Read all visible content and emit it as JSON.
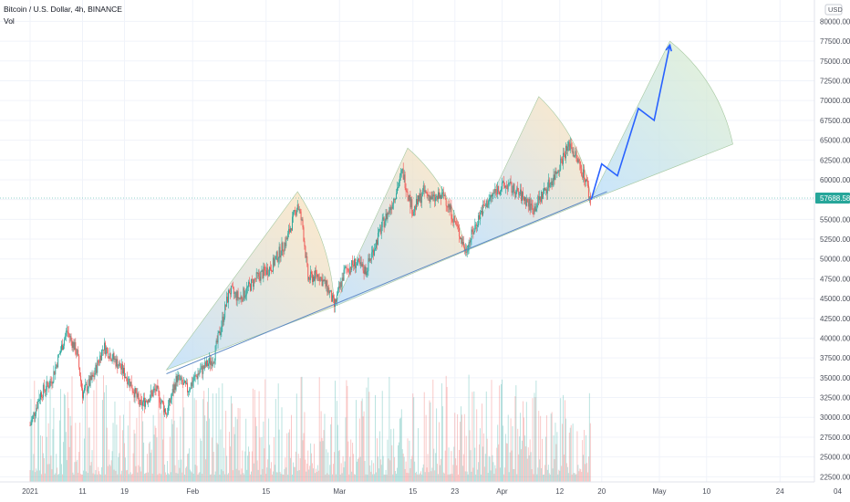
{
  "header": {
    "symbol_line": "Bitcoin / U.S. Dollar, 4h, BINANCE",
    "indicator": "Vol"
  },
  "chart_data": {
    "type": "candlestick",
    "y_axis": {
      "unit": "USD",
      "ticks": [
        "80000.00",
        "77500.00",
        "75000.00",
        "72500.00",
        "70000.00",
        "67500.00",
        "65000.00",
        "62500.00",
        "60000.00",
        "57500.00",
        "55000.00",
        "52500.00",
        "50000.00",
        "47500.00",
        "45000.00",
        "42500.00",
        "40000.00",
        "37500.00",
        "35000.00",
        "32500.00",
        "30000.00",
        "27500.00",
        "25000.00",
        "22500.00"
      ],
      "ylim": [
        21500,
        81500
      ],
      "grid": true
    },
    "x_axis": {
      "ticks": [
        "2021",
        "11",
        "19",
        "Feb",
        "15",
        "Mar",
        "15",
        "23",
        "Apr",
        "12",
        "20",
        "May",
        "10",
        "24",
        "04"
      ],
      "tick_dates": [
        "2021-01-01",
        "2021-01-11",
        "2021-01-19",
        "2021-02-01",
        "2021-02-15",
        "2021-03-01",
        "2021-03-15",
        "2021-03-23",
        "2021-04-01",
        "2021-04-12",
        "2021-04-20",
        "2021-05-01",
        "2021-05-10",
        "2021-05-24",
        "2021-06-04"
      ]
    },
    "last_price": "57688.58",
    "price_path": [
      [
        "2021-01-01",
        29000
      ],
      [
        "2021-01-03",
        33000
      ],
      [
        "2021-01-05",
        34500
      ],
      [
        "2021-01-08",
        41000
      ],
      [
        "2021-01-10",
        38000
      ],
      [
        "2021-01-11",
        33000
      ],
      [
        "2021-01-13",
        35000
      ],
      [
        "2021-01-15",
        39000
      ],
      [
        "2021-01-18",
        36500
      ],
      [
        "2021-01-20",
        34500
      ],
      [
        "2021-01-22",
        31500
      ],
      [
        "2021-01-25",
        33500
      ],
      [
        "2021-01-27",
        30500
      ],
      [
        "2021-01-29",
        35000
      ],
      [
        "2021-01-31",
        33500
      ],
      [
        "2021-02-02",
        35500
      ],
      [
        "2021-02-05",
        37500
      ],
      [
        "2021-02-08",
        46000
      ],
      [
        "2021-02-10",
        45000
      ],
      [
        "2021-02-13",
        47500
      ],
      [
        "2021-02-16",
        49000
      ],
      [
        "2021-02-19",
        52500
      ],
      [
        "2021-02-21",
        57000
      ],
      [
        "2021-02-22",
        54000
      ],
      [
        "2021-02-23",
        47500
      ],
      [
        "2021-02-25",
        48000
      ],
      [
        "2021-02-27",
        46000
      ],
      [
        "2021-02-28",
        44000
      ],
      [
        "2021-03-02",
        48500
      ],
      [
        "2021-03-04",
        49500
      ],
      [
        "2021-03-06",
        48500
      ],
      [
        "2021-03-09",
        54000
      ],
      [
        "2021-03-11",
        57000
      ],
      [
        "2021-03-13",
        61000
      ],
      [
        "2021-03-15",
        56000
      ],
      [
        "2021-03-17",
        58500
      ],
      [
        "2021-03-19",
        57500
      ],
      [
        "2021-03-21",
        58000
      ],
      [
        "2021-03-24",
        53000
      ],
      [
        "2021-03-25",
        51000
      ],
      [
        "2021-03-28",
        56000
      ],
      [
        "2021-03-31",
        58800
      ],
      [
        "2021-04-02",
        59300
      ],
      [
        "2021-04-05",
        57800
      ],
      [
        "2021-04-07",
        56300
      ],
      [
        "2021-04-09",
        58500
      ],
      [
        "2021-04-11",
        60500
      ],
      [
        "2021-04-13",
        63500
      ],
      [
        "2021-04-14",
        64500
      ],
      [
        "2021-04-16",
        61500
      ],
      [
        "2021-04-17",
        60000
      ],
      [
        "2021-04-18",
        56500
      ]
    ],
    "volume": {
      "note": "volume histogram shown on lower pane"
    },
    "projection": {
      "arrow_path": [
        [
          "2021-04-18",
          57500
        ],
        [
          "2021-04-20",
          62000
        ],
        [
          "2021-04-23",
          60500
        ],
        [
          "2021-04-27",
          69000
        ],
        [
          "2021-04-30",
          67500
        ],
        [
          "2021-05-03",
          77000
        ]
      ]
    },
    "trendline": [
      [
        "2021-01-27",
        35500
      ],
      [
        "2021-04-21",
        58500
      ]
    ]
  },
  "colors": {
    "up": "#26a69a",
    "down": "#ef5350",
    "arrow": "#2962ff",
    "last_price_tag": "#26a69a",
    "grid": "#f0f3fa"
  }
}
